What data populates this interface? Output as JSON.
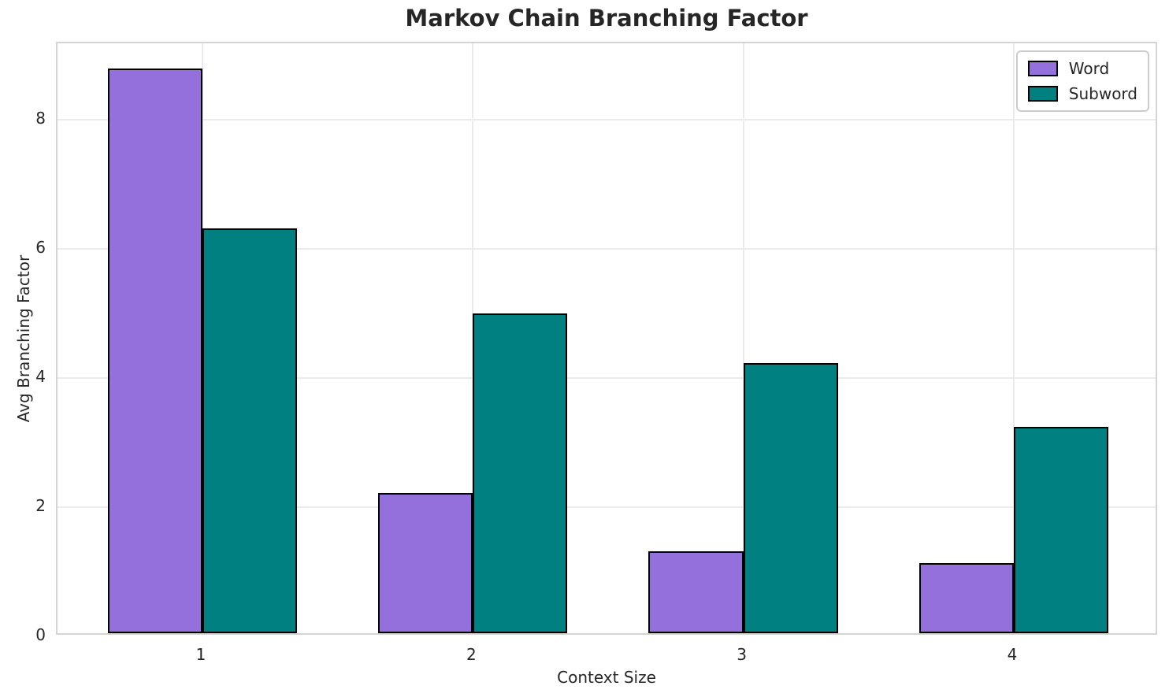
{
  "title": "Markov Chain Branching Factor",
  "chart_data": {
    "type": "bar",
    "categories": [
      "1",
      "2",
      "3",
      "4"
    ],
    "series": [
      {
        "name": "Word",
        "color": "#9370DB",
        "values": [
          8.74,
          2.17,
          1.27,
          1.08
        ]
      },
      {
        "name": "Subword",
        "color": "#008080",
        "values": [
          6.27,
          4.95,
          4.18,
          3.2
        ]
      }
    ],
    "xlabel": "Context Size",
    "ylabel": "Avg Branching Factor",
    "yticks": [
      0,
      2,
      4,
      6,
      8
    ],
    "ylim": [
      0,
      9.18
    ],
    "bar_width": 0.35,
    "grid": true,
    "legend_position": "upper right",
    "colors": {
      "bar_edge": "#000000",
      "text": "#262626",
      "grid": "#ebebeb",
      "spine": "#d4d4d4",
      "background": "#ffffff"
    }
  }
}
